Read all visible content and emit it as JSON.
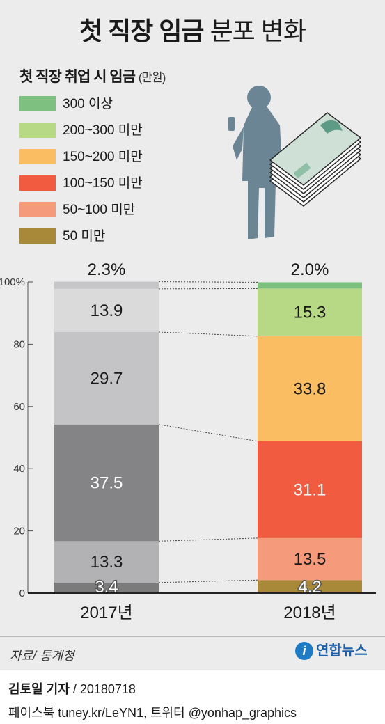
{
  "title": {
    "bold": "첫 직장 임금",
    "regular": "분포 변화"
  },
  "legend": {
    "title": "첫 직장 취업 시 임금",
    "unit": "(만원)",
    "items": [
      {
        "label": "300 이상",
        "color": "#7dc07f"
      },
      {
        "label": "200~300 미만",
        "color": "#b7d985"
      },
      {
        "label": "150~200 미만",
        "color": "#fbbd62"
      },
      {
        "label": "100~150 미만",
        "color": "#f15b40"
      },
      {
        "label": "50~100 미만",
        "color": "#f59a7a"
      },
      {
        "label": "50 미만",
        "color": "#a8893a"
      }
    ]
  },
  "chart_data": {
    "type": "bar",
    "stacked": true,
    "categories": [
      "2017년",
      "2018년"
    ],
    "yticks": [
      "0",
      "20",
      "40",
      "60",
      "80",
      "100%"
    ],
    "ylim": [
      0,
      100
    ],
    "series": [
      {
        "name": "50 미만",
        "values": [
          3.4,
          4.2
        ],
        "labels": [
          "3.4",
          "4.2"
        ]
      },
      {
        "name": "50~100 미만",
        "values": [
          13.3,
          13.5
        ],
        "labels": [
          "13.3",
          "13.5"
        ]
      },
      {
        "name": "100~150 미만",
        "values": [
          37.5,
          31.1
        ],
        "labels": [
          "37.5",
          "31.1"
        ]
      },
      {
        "name": "150~200 미만",
        "values": [
          29.7,
          33.8
        ],
        "labels": [
          "29.7",
          "33.8"
        ]
      },
      {
        "name": "200~300 미만",
        "values": [
          13.9,
          15.3
        ],
        "labels": [
          "13.9",
          "15.3"
        ]
      },
      {
        "name": "300 이상",
        "values": [
          2.3,
          2.0
        ],
        "labels": [
          "2.3%",
          "2.0%"
        ]
      }
    ],
    "colors_2017": [
      "#7b7b7b",
      "#b2b2b4",
      "#848486",
      "#c4c4c6",
      "#dadadb",
      "#c6c6c8"
    ],
    "colors_2018": [
      "#a8893a",
      "#f59a7a",
      "#f15b40",
      "#fbbd62",
      "#b7d985",
      "#7dc07f"
    ]
  },
  "source": "자료/ 통계청",
  "logo": "연합뉴스",
  "byline": {
    "reporter": "김토일 기자",
    "date": "/ 20180718"
  },
  "social": "페이스북 tuney.kr/LeYN1, 트위터 @yonhap_graphics"
}
